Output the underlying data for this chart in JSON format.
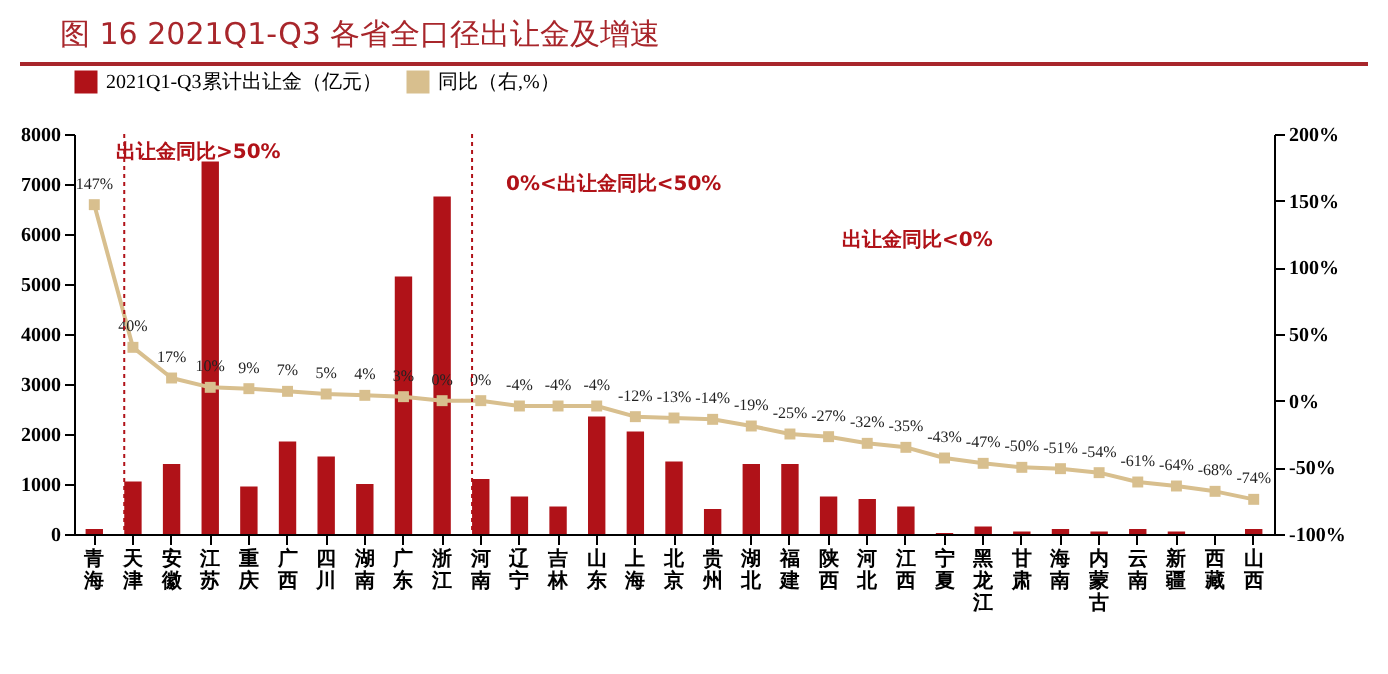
{
  "chart_data": {
    "type": "bar",
    "title": "图 16  2021Q1-Q3 各省全口径出让金及增速",
    "categories": [
      "青海",
      "天津",
      "安徽",
      "江苏",
      "重庆",
      "广西",
      "四川",
      "湖南",
      "广东",
      "浙江",
      "河南",
      "辽宁",
      "吉林",
      "山东",
      "上海",
      "北京",
      "贵州",
      "湖北",
      "福建",
      "陕西",
      "河北",
      "江西",
      "宁夏",
      "黑龙江",
      "甘肃",
      "海南",
      "内蒙古",
      "云南",
      "新疆",
      "西藏",
      "山西"
    ],
    "series": [
      {
        "name": "2021Q1-Q3累计出让金（亿元）",
        "color": "#b01218",
        "values": [
          100,
          1050,
          1400,
          7450,
          950,
          1850,
          1550,
          1000,
          5150,
          6750,
          1100,
          750,
          550,
          2350,
          2050,
          1450,
          500,
          1400,
          1400,
          750,
          700,
          550,
          20,
          150,
          50,
          100,
          50,
          100,
          50,
          null,
          100
        ]
      },
      {
        "name": "同比（右,%）",
        "type": "line",
        "axis": "y2",
        "color": "#d8bf8e",
        "marker": "square",
        "line_style": "solid",
        "values": [
          147,
          40,
          17,
          10,
          9,
          7,
          5,
          4,
          3,
          0,
          0,
          -4,
          -4,
          -4,
          -12,
          -13,
          -14,
          -19,
          -25,
          -27,
          -32,
          -35,
          -43,
          -47,
          -50,
          -51,
          -54,
          -61,
          -64,
          -68,
          -74
        ],
        "value_labels": [
          "147%",
          "40%",
          "17%",
          "10%",
          "9%",
          "7%",
          "5%",
          "4%",
          "3%",
          "0%",
          "0%",
          "-4%",
          "-4%",
          "-4%",
          "-12%",
          "-13%",
          "-14%",
          "-19%",
          "-25%",
          "-27%",
          "-32%",
          "-35%",
          "-43%",
          "-47%",
          "-50%",
          "-51%",
          "-54%",
          "-61%",
          "-64%",
          "-68%",
          "-74%"
        ]
      }
    ],
    "ylim": [
      0,
      8000
    ],
    "yticks": [
      0,
      1000,
      2000,
      3000,
      4000,
      5000,
      6000,
      7000,
      8000
    ],
    "y2lim": [
      -100,
      200
    ],
    "y2ticks": [
      {
        "value": -100,
        "label": "-100%"
      },
      {
        "value": -50,
        "label": "-50%"
      },
      {
        "value": 0,
        "label": "0%"
      },
      {
        "value": 50,
        "label": "50%"
      },
      {
        "value": 100,
        "label": "100%"
      },
      {
        "value": 150,
        "label": "150%"
      },
      {
        "value": 200,
        "label": "200%"
      }
    ],
    "ref_lines": [
      {
        "axis": "x",
        "value": "天津",
        "color": "#b01218",
        "line_style": "dotted"
      },
      {
        "axis": "x",
        "value": "河南",
        "color": "#b01218",
        "line_style": "dotted"
      }
    ],
    "annotations": [
      "出让金同比>50%",
      "0%<出让金同比<50%",
      "出让金同比<0%"
    ],
    "legend": "top",
    "grid": false
  }
}
